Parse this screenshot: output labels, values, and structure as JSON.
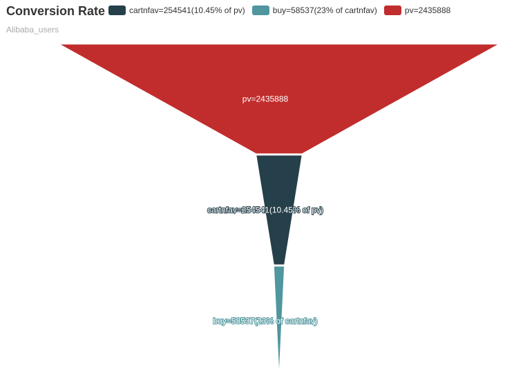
{
  "title": "Conversion Rate",
  "subtitle": "Alibaba_users",
  "chart_data": {
    "type": "funnel",
    "title": "Conversion Rate",
    "subtitle": "Alibaba_users",
    "legend": {
      "placement": "top",
      "items": [
        {
          "label": "cartnfav=254541(10.45% of pv)",
          "color": "#26404b"
        },
        {
          "label": "buy=58537(23% of cartnfav)",
          "color": "#4f969e"
        },
        {
          "label": "pv=2435888",
          "color": "#c12d2d"
        }
      ]
    },
    "stages": [
      {
        "label": "pv=2435888",
        "value": 2435888,
        "color": "#c12d2d",
        "label_color": "#ffffff"
      },
      {
        "label": "cartnfav=254541(10.45% of pv)",
        "value": 254541,
        "color": "#26404b",
        "label_color": "#ffffff"
      },
      {
        "label": "buy=58537(23% of cartnfav)",
        "value": 58537,
        "color": "#4f969e",
        "label_color": "#ffffff"
      }
    ],
    "width_scale_max": 2435888
  }
}
